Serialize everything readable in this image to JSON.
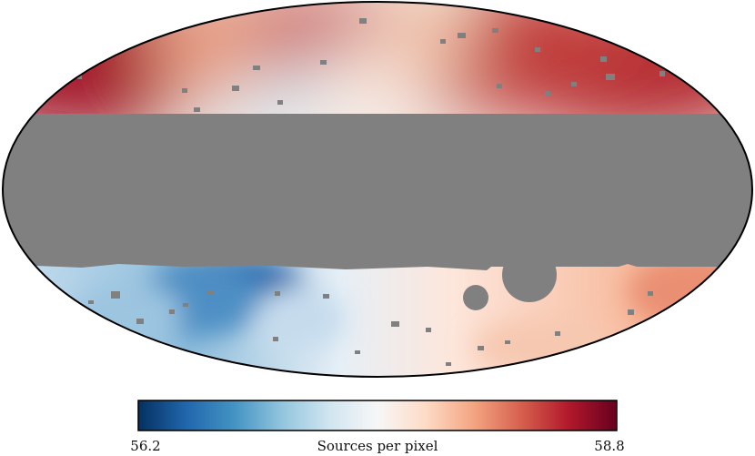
{
  "chart_data": {
    "type": "heatmap",
    "projection": "mollweide",
    "colormap": "RdBu_r",
    "colorbar": {
      "min": 56.2,
      "max": 58.8,
      "min_label": "56.2",
      "max_label": "58.8",
      "label": "Sources per pixel"
    },
    "masked_color": "#808080",
    "masked_regions": [
      "galactic plane band",
      "circular patches",
      "scattered small holes"
    ],
    "grid": false
  }
}
